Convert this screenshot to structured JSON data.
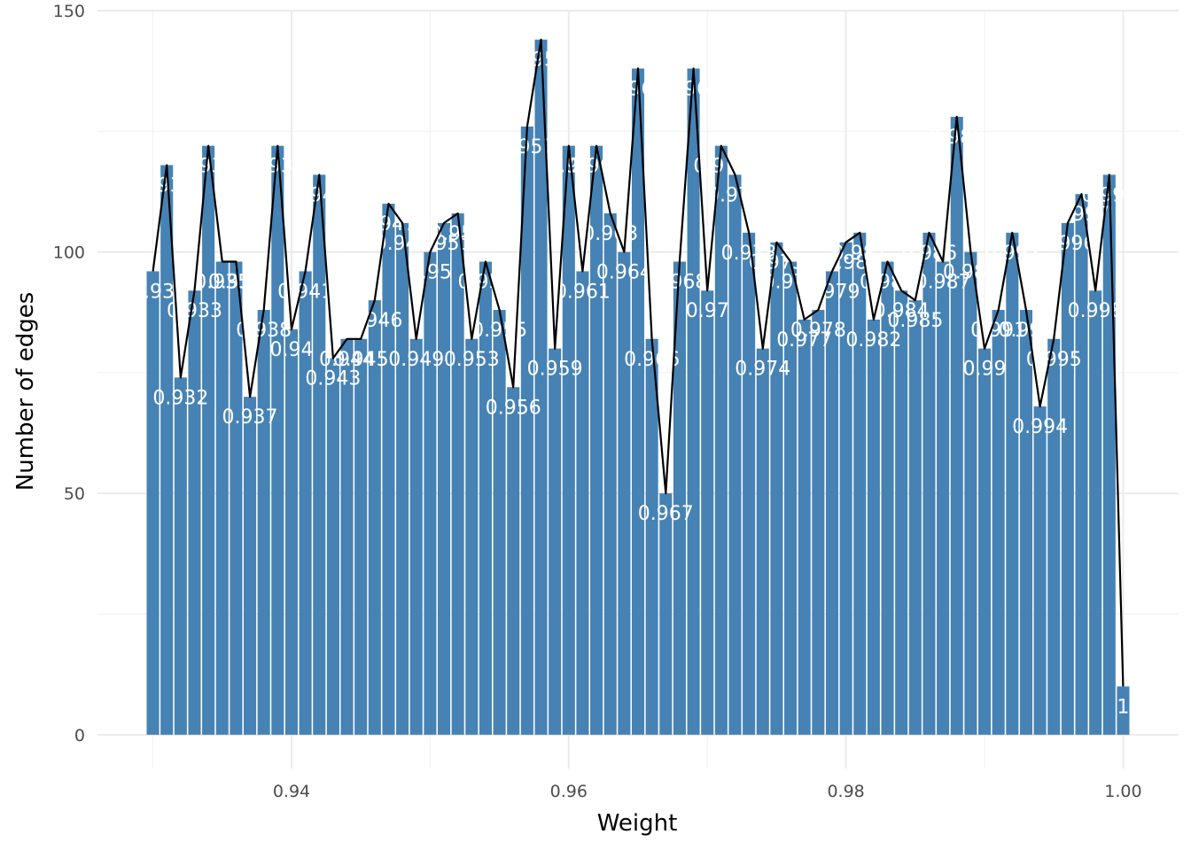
{
  "chart_data": {
    "type": "bar",
    "xlabel": "Weight",
    "ylabel": "Number of edges",
    "xlim": [
      0.926,
      1.004
    ],
    "ylim": [
      -7,
      150
    ],
    "x_ticks": [
      0.94,
      0.96,
      0.98,
      1.0
    ],
    "x_tick_labels": [
      "0.94",
      "0.96",
      "0.98",
      "1.00"
    ],
    "y_ticks": [
      0,
      50,
      100,
      150
    ],
    "y_tick_labels": [
      "0",
      "50",
      "100",
      "150"
    ],
    "grid": true,
    "legend": "none",
    "overlay": "line connecting bar tops",
    "bar_color": "#4682b4",
    "line_color": "#000000",
    "x": [
      0.93,
      0.931,
      0.932,
      0.933,
      0.934,
      0.935,
      0.936,
      0.937,
      0.938,
      0.939,
      0.94,
      0.941,
      0.942,
      0.943,
      0.944,
      0.945,
      0.946,
      0.947,
      0.948,
      0.949,
      0.95,
      0.951,
      0.952,
      0.953,
      0.954,
      0.955,
      0.956,
      0.957,
      0.958,
      0.959,
      0.96,
      0.961,
      0.962,
      0.963,
      0.964,
      0.965,
      0.966,
      0.967,
      0.968,
      0.969,
      0.97,
      0.971,
      0.972,
      0.973,
      0.974,
      0.975,
      0.976,
      0.977,
      0.978,
      0.979,
      0.98,
      0.981,
      0.982,
      0.983,
      0.984,
      0.985,
      0.986,
      0.987,
      0.988,
      0.989,
      0.99,
      0.991,
      0.992,
      0.993,
      0.994,
      0.995,
      0.996,
      0.997,
      0.998,
      0.999,
      1.0
    ],
    "values": [
      96,
      118,
      74,
      92,
      122,
      98,
      98,
      70,
      88,
      122,
      84,
      96,
      116,
      78,
      82,
      82,
      90,
      110,
      106,
      82,
      100,
      106,
      108,
      82,
      98,
      88,
      72,
      126,
      144,
      80,
      122,
      96,
      122,
      108,
      100,
      138,
      82,
      50,
      98,
      138,
      92,
      122,
      116,
      104,
      80,
      102,
      98,
      86,
      88,
      96,
      102,
      104,
      86,
      98,
      92,
      90,
      104,
      98,
      128,
      100,
      80,
      88,
      104,
      88,
      68,
      82,
      106,
      112,
      92,
      116,
      10
    ],
    "labels": [
      "0.93",
      "0.931",
      "0.932",
      "0.933",
      "0.934",
      "0.935",
      "0.936",
      "0.937",
      "0.938",
      "0.939",
      "0.94",
      "0.941",
      "0.942",
      "0.943",
      "0.944",
      "0.945",
      "0.946",
      "0.947",
      "0.948",
      "0.949",
      "0.95",
      "0.951",
      "0.952",
      "0.953",
      "0.954",
      "0.955",
      "0.956",
      "0.957",
      "0.958",
      "0.959",
      "0.96",
      "0.961",
      "0.962",
      "0.963",
      "0.964",
      "0.965",
      "0.966",
      "0.967",
      "0.968",
      "0.969",
      "0.97",
      "0.971",
      "0.972",
      "0.973",
      "0.974",
      "0.975",
      "0.976",
      "0.977",
      "0.978",
      "0.979",
      "0.98",
      "0.981",
      "0.982",
      "0.983",
      "0.984",
      "0.985",
      "0.986",
      "0.987",
      "0.988",
      "0.989",
      "0.99",
      "0.991",
      "0.992",
      "0.993",
      "0.994",
      "0.995",
      "0.996",
      "0.997",
      "0.998",
      "0.999",
      "1"
    ]
  }
}
